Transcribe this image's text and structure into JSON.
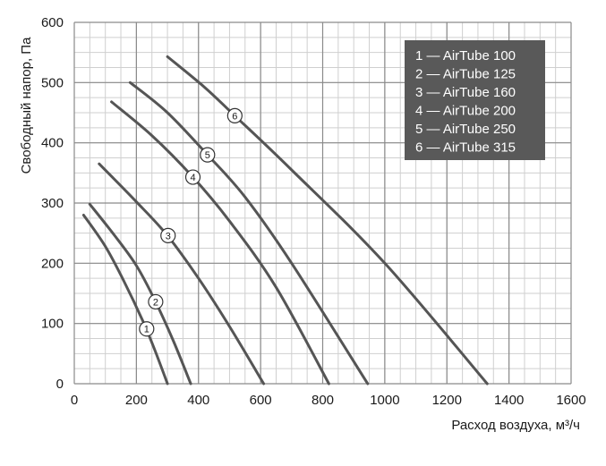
{
  "chart_data": {
    "type": "line",
    "xlabel": "Расход воздуха, м³/ч",
    "ylabel": "Свободный напор, Па",
    "xlim": [
      0,
      1600
    ],
    "ylim": [
      0,
      600
    ],
    "x_ticks": [
      0,
      200,
      400,
      600,
      800,
      1000,
      1200,
      1400,
      1600
    ],
    "y_ticks": [
      0,
      100,
      200,
      300,
      400,
      500,
      600
    ],
    "x_minor_step": 50,
    "y_minor_step": 25,
    "grid": true,
    "legend_position": "top-right",
    "line_color": "#555555",
    "legend_bg": "#595959",
    "series": [
      {
        "name": "1 — AirTube 100",
        "marker": "1",
        "marker_at": [
          233,
          91
        ],
        "points": [
          [
            30,
            280
          ],
          [
            100,
            228
          ],
          [
            160,
            170
          ],
          [
            220,
            105
          ],
          [
            260,
            55
          ],
          [
            300,
            0
          ]
        ]
      },
      {
        "name": "2 — AirTube 125",
        "marker": "2",
        "marker_at": [
          262,
          136
        ],
        "points": [
          [
            50,
            298
          ],
          [
            130,
            246
          ],
          [
            200,
            196
          ],
          [
            260,
            138
          ],
          [
            320,
            70
          ],
          [
            375,
            0
          ]
        ]
      },
      {
        "name": "3 — AirTube 160",
        "marker": "3",
        "marker_at": [
          302,
          246
        ],
        "points": [
          [
            80,
            365
          ],
          [
            200,
            302
          ],
          [
            300,
            246
          ],
          [
            400,
            175
          ],
          [
            500,
            95
          ],
          [
            610,
            0
          ]
        ]
      },
      {
        "name": "4 — AirTube 200",
        "marker": "4",
        "marker_at": [
          382,
          343
        ],
        "points": [
          [
            120,
            468
          ],
          [
            250,
            412
          ],
          [
            382,
            343
          ],
          [
            500,
            270
          ],
          [
            650,
            160
          ],
          [
            820,
            0
          ]
        ]
      },
      {
        "name": "5 — AirTube 250",
        "marker": "5",
        "marker_at": [
          429,
          380
        ],
        "points": [
          [
            180,
            500
          ],
          [
            300,
            450
          ],
          [
            429,
            380
          ],
          [
            550,
            310
          ],
          [
            700,
            200
          ],
          [
            945,
            0
          ]
        ]
      },
      {
        "name": "6 — AirTube 315",
        "marker": "6",
        "marker_at": [
          517,
          445
        ],
        "points": [
          [
            300,
            543
          ],
          [
            420,
            492
          ],
          [
            517,
            445
          ],
          [
            700,
            355
          ],
          [
            1000,
            200
          ],
          [
            1330,
            0
          ]
        ]
      }
    ]
  }
}
